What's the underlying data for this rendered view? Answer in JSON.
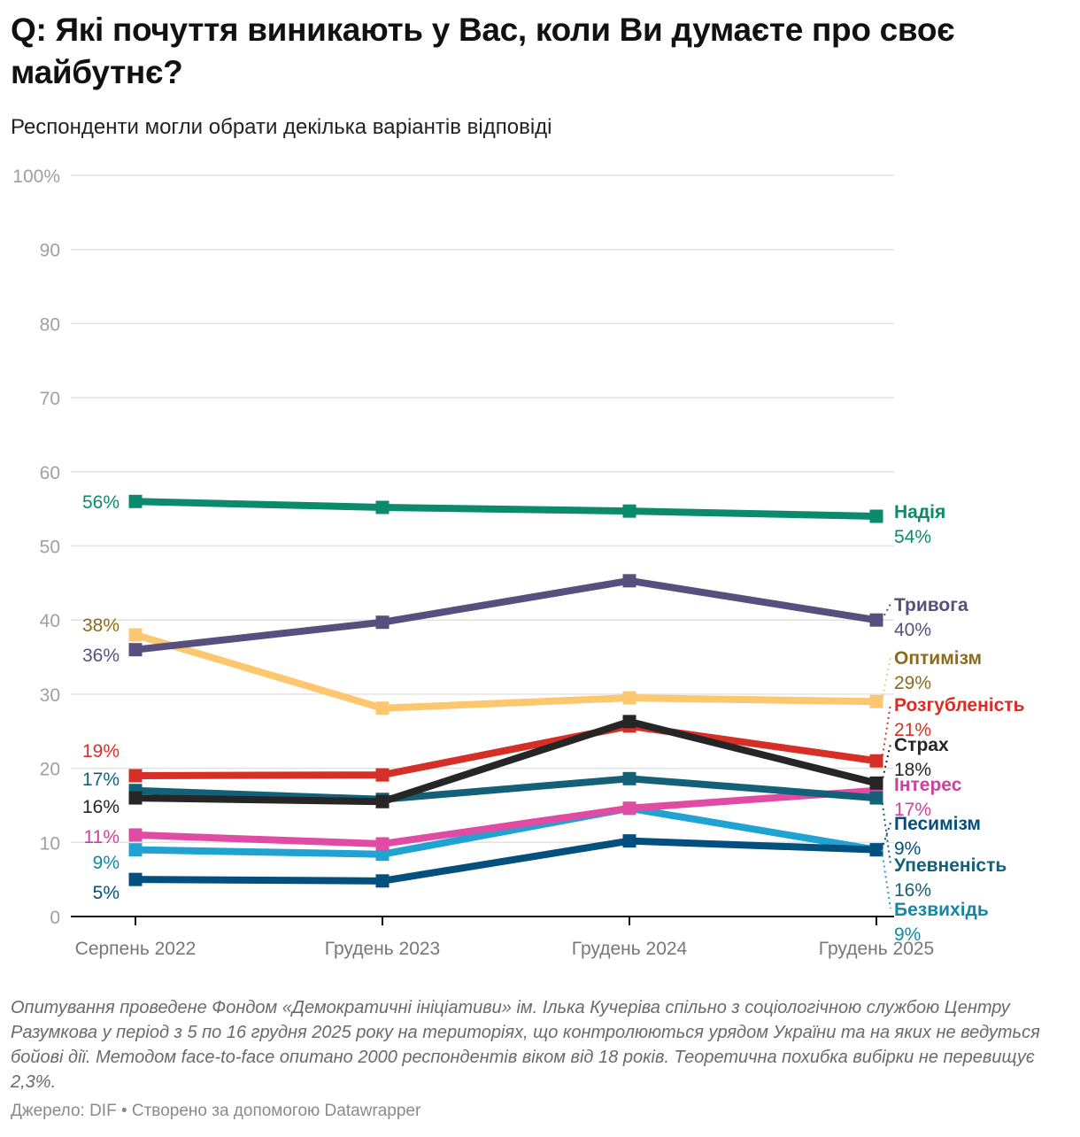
{
  "header": {
    "title": "Q: Які почуття виникають у Вас, коли Ви думаєте про своє майбутнє?",
    "subtitle": "Респонденти могли обрати декілька варіантів відповіді"
  },
  "footer": {
    "notes": "Опитування проведене Фондом «Демократичні ініціативи» ім. Ілька Кучеріва спільно з соціологічною службою Центру Разумкова у період з 5 по 16 грудня 2025 року на територіях, що контролюються урядом України та на яких не ведуться бойові дії. Методом face-to-face опитано 2000 респондентів віком від 18 років. Теоретична похибка вибірки не перевищує 2,3%.",
    "source": "Джерело: DIF • Створено за допомогою Datawrapper"
  },
  "chart_data": {
    "type": "line",
    "title": "Q: Які почуття виникають у Вас, коли Ви думаєте про своє майбутнє?",
    "subtitle": "Респонденти могли обрати декілька варіантів відповіді",
    "xlabel": "",
    "ylabel": "",
    "categories": [
      "Серпень 2022",
      "Грудень 2023",
      "Грудень 2024",
      "Грудень 2025"
    ],
    "ylim": [
      0,
      100
    ],
    "yticks": [
      0,
      10,
      20,
      30,
      40,
      50,
      60,
      70,
      80,
      90,
      100
    ],
    "ytick_labels": [
      "0",
      "10",
      "20",
      "30",
      "40",
      "50",
      "60",
      "70",
      "80",
      "90",
      "100%"
    ],
    "grid": true,
    "legend": "direct labels at right end",
    "series": [
      {
        "name": "Надія",
        "color": "#0b8a6c",
        "label_color": "#0b8a6c",
        "values": [
          56,
          55.2,
          54.7,
          54
        ],
        "start_label": "56%",
        "end_label": "54%"
      },
      {
        "name": "Тривога",
        "color": "#574f7d",
        "label_color": "#574f7d",
        "values": [
          36,
          39.7,
          45.3,
          40
        ],
        "start_label": "36%",
        "end_label": "40%"
      },
      {
        "name": "Оптимізм",
        "color": "#fdc76f",
        "label_color": "#8e6a1c",
        "values": [
          38,
          28.1,
          29.5,
          29
        ],
        "start_label": "38%",
        "end_label": "29%"
      },
      {
        "name": "Розгубленість",
        "color": "#d62f27",
        "label_color": "#d62f27",
        "values": [
          19,
          19.1,
          25.7,
          21
        ],
        "start_label": "19%",
        "end_label": "21%"
      },
      {
        "name": "Страх",
        "color": "#262626",
        "label_color": "#262626",
        "values": [
          16,
          15.5,
          26.3,
          18
        ],
        "start_label": "16%",
        "end_label": "18%"
      },
      {
        "name": "Інтерес",
        "color": "#e04ca4",
        "label_color": "#c8449a",
        "values": [
          11,
          9.8,
          14.6,
          17
        ],
        "start_label": "11%",
        "end_label": "17%"
      },
      {
        "name": "Песимізм",
        "color": "#034f7d",
        "label_color": "#034f7d",
        "values": [
          5,
          4.8,
          10.2,
          9
        ],
        "start_label": "5%",
        "end_label": "9%"
      },
      {
        "name": "Упевненість",
        "color": "#136178",
        "label_color": "#136178",
        "values": [
          17,
          15.8,
          18.6,
          16
        ],
        "start_label": "17%",
        "end_label": "16%"
      },
      {
        "name": "Безвихідь",
        "color": "#20a3d3",
        "label_color": "#1288a8",
        "values": [
          9,
          8.4,
          14.6,
          9
        ],
        "start_label": "9%",
        "end_label": "9%"
      }
    ]
  }
}
